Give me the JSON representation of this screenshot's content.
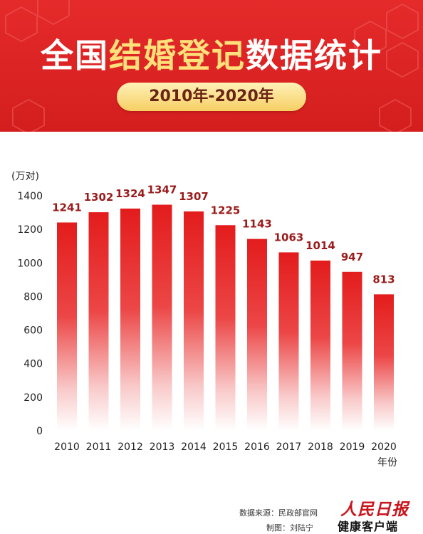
{
  "header": {
    "title_part1": "全国",
    "title_part2": "结婚登记",
    "title_part3": "数据统计",
    "subtitle": "2010年-2020年"
  },
  "colors": {
    "banner": "#d92323",
    "title_highlight": "#ffe07a",
    "bar_top": "#e31c1c",
    "value_label": "#9b1b1b"
  },
  "chart_data": {
    "type": "bar",
    "title": "全国结婚登记数据统计",
    "subtitle": "2010年-2020年",
    "categories": [
      "2010",
      "2011",
      "2012",
      "2013",
      "2014",
      "2015",
      "2016",
      "2017",
      "2018",
      "2019",
      "2020"
    ],
    "values": [
      1241,
      1302,
      1324,
      1347,
      1307,
      1225,
      1143,
      1063,
      1014,
      947,
      813
    ],
    "value_labels": [
      "1241",
      "1302",
      "1324",
      "1347",
      "1307",
      "1225",
      "1143",
      "1063",
      "1014",
      "947",
      "813"
    ],
    "ylabel": "(万对)",
    "xlabel": "年份",
    "ylim": [
      0,
      1400
    ],
    "yticks": [
      0,
      200,
      400,
      600,
      800,
      1000,
      1200,
      1400
    ],
    "grid": false,
    "legend": "none"
  },
  "footer": {
    "source": "数据来源：民政部官网",
    "author": "制图：刘陆宁",
    "logo_top": "人民日报",
    "logo_bottom": "健康客户端"
  }
}
